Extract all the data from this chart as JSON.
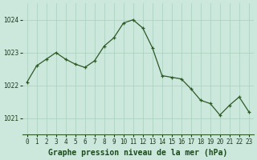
{
  "x": [
    0,
    1,
    2,
    3,
    4,
    5,
    6,
    7,
    8,
    9,
    10,
    11,
    12,
    13,
    14,
    15,
    16,
    17,
    18,
    19,
    20,
    21,
    22,
    23
  ],
  "y": [
    1022.1,
    1022.6,
    1022.8,
    1023.0,
    1022.8,
    1022.65,
    1022.55,
    1022.75,
    1023.2,
    1023.45,
    1023.9,
    1024.0,
    1023.75,
    1023.15,
    1022.3,
    1022.25,
    1022.2,
    1021.9,
    1021.55,
    1021.45,
    1021.1,
    1021.4,
    1021.65,
    1021.2
  ],
  "line_color": "#2d5a27",
  "marker_color": "#2d5a27",
  "bg_color": "#cce8dd",
  "grid_color": "#aacfbe",
  "xlabel": "Graphe pression niveau de la mer (hPa)",
  "xlabel_color": "#1a4a1a",
  "ylim_min": 1020.5,
  "ylim_max": 1024.5,
  "yticks": [
    1021,
    1022,
    1023,
    1024
  ],
  "xticks": [
    0,
    1,
    2,
    3,
    4,
    5,
    6,
    7,
    8,
    9,
    10,
    11,
    12,
    13,
    14,
    15,
    16,
    17,
    18,
    19,
    20,
    21,
    22,
    23
  ],
  "tick_fontsize": 5.5,
  "xlabel_fontsize": 7.0
}
